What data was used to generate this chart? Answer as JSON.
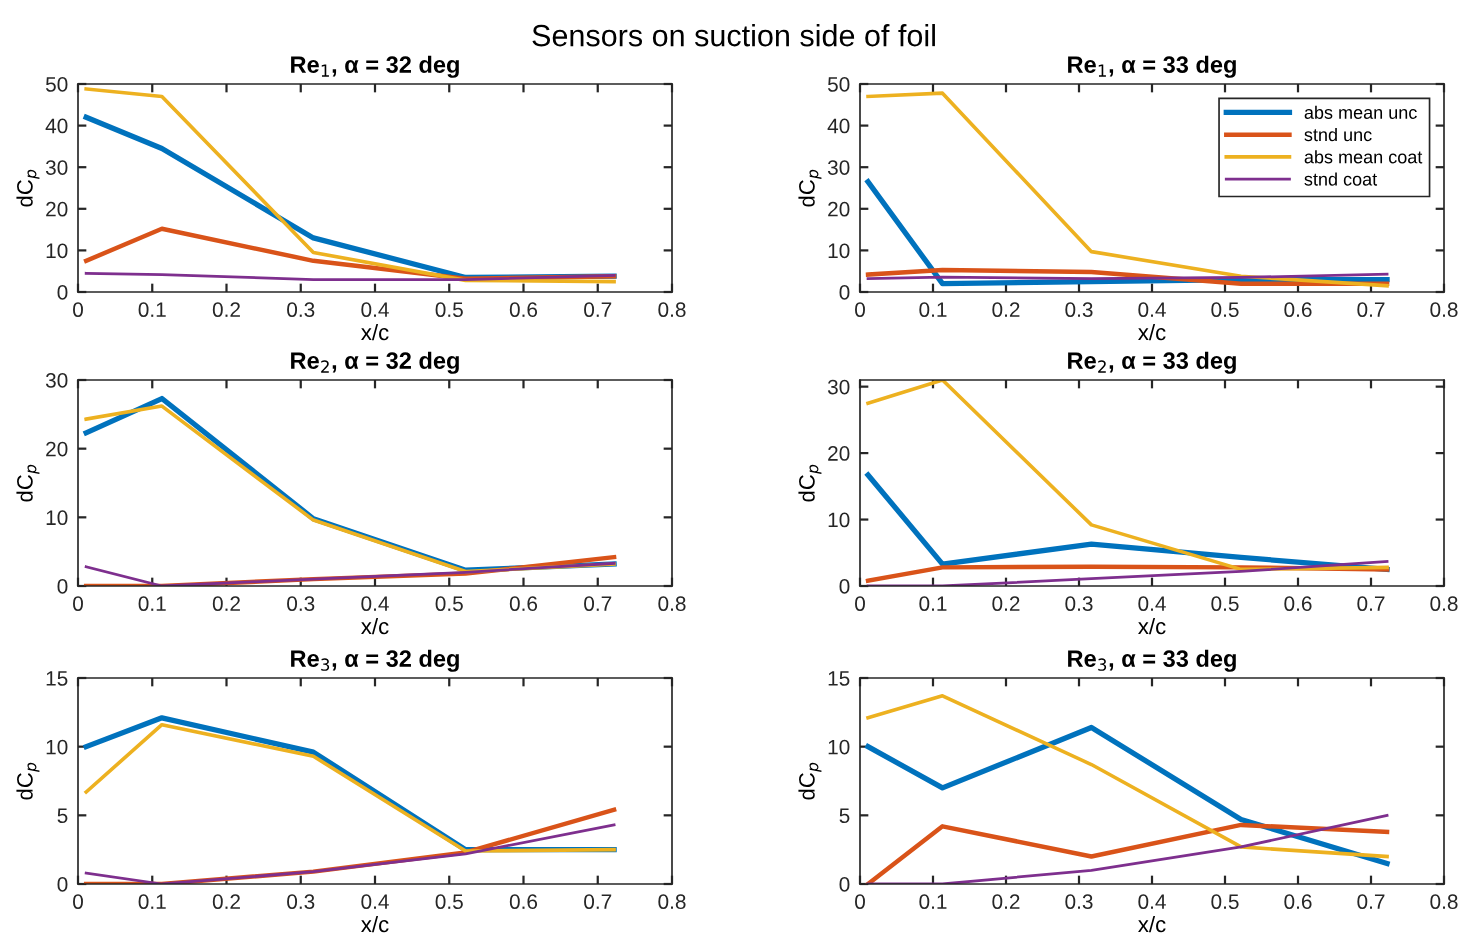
{
  "chart_data": [
    {
      "type": "line",
      "title": "Sensors on suction side of foil",
      "subtitle": "Re$_{1}$, α = 32 deg",
      "xlabel": "x/c",
      "ylabel": "dC$_{p}$",
      "x": [
        0.011,
        0.113,
        0.317,
        0.522,
        0.722
      ],
      "xlim": [
        0,
        0.8
      ],
      "xticks": [
        0,
        0.1,
        0.2,
        0.3,
        0.4,
        0.5,
        0.6,
        0.7,
        0.8
      ],
      "ylim": [
        0,
        50
      ],
      "yticks": [
        0,
        10,
        20,
        30,
        40,
        50
      ],
      "grid": false,
      "legend": false,
      "series": [
        {
          "color": "#0072bd",
          "values": [
            42,
            34.5,
            13,
            3.5,
            3.8
          ]
        },
        {
          "color": "#d95319",
          "values": [
            7.5,
            15.2,
            7.5,
            3.2,
            3.8
          ]
        },
        {
          "color": "#edb120",
          "values": [
            48.8,
            47,
            9.5,
            2.8,
            2.5
          ]
        },
        {
          "color": "#7e2f8e",
          "values": [
            4.5,
            4.2,
            3,
            3,
            4
          ]
        }
      ]
    },
    {
      "type": "line",
      "subtitle": "Re$_{1}$, α = 33 deg",
      "xlabel": "x/c",
      "ylabel": "dC$_{p}$",
      "x": [
        0.011,
        0.113,
        0.317,
        0.522,
        0.722
      ],
      "xlim": [
        0,
        0.8
      ],
      "xticks": [
        0,
        0.1,
        0.2,
        0.3,
        0.4,
        0.5,
        0.6,
        0.7,
        0.8
      ],
      "ylim": [
        0,
        50
      ],
      "yticks": [
        0,
        10,
        20,
        30,
        40,
        50
      ],
      "grid": false,
      "legend": "top right",
      "series": [
        {
          "name": "abs mean unc",
          "color": "#0072bd",
          "values": [
            26.5,
            2,
            2.5,
            3,
            3
          ]
        },
        {
          "name": "stnd unc",
          "color": "#d95319",
          "values": [
            4.2,
            5.3,
            4.8,
            2,
            2
          ]
        },
        {
          "name": "abs mean coat",
          "color": "#edb120",
          "values": [
            47,
            47.8,
            9.7,
            3.8,
            1.5
          ]
        },
        {
          "name": "stnd coat",
          "color": "#7e2f8e",
          "values": [
            3.2,
            3.6,
            3.2,
            3.5,
            4.3
          ]
        }
      ]
    },
    {
      "type": "line",
      "subtitle": "Re$_{2}$, α = 32 deg",
      "xlabel": "x/c",
      "ylabel": "dC$_{p}$",
      "x": [
        0.011,
        0.113,
        0.317,
        0.522,
        0.722
      ],
      "xlim": [
        0,
        0.8
      ],
      "xticks": [
        0,
        0.1,
        0.2,
        0.3,
        0.4,
        0.5,
        0.6,
        0.7,
        0.8
      ],
      "ylim": [
        0,
        30
      ],
      "yticks": [
        0,
        10,
        20,
        30
      ],
      "grid": false,
      "legend": false,
      "series": [
        {
          "color": "#0072bd",
          "values": [
            22.3,
            27.3,
            9.8,
            2.3,
            3.2
          ]
        },
        {
          "color": "#d95319",
          "values": [
            0,
            0,
            1,
            1.8,
            4.2
          ]
        },
        {
          "color": "#edb120",
          "values": [
            24.3,
            26.2,
            9.6,
            2.1,
            3.2
          ]
        },
        {
          "color": "#7e2f8e",
          "values": [
            2.8,
            0,
            1,
            2,
            3.3
          ]
        }
      ]
    },
    {
      "type": "line",
      "subtitle": "Re$_{2}$, α = 33 deg",
      "xlabel": "x/c",
      "ylabel": "dC$_{p}$",
      "x": [
        0.011,
        0.113,
        0.317,
        0.522,
        0.722
      ],
      "xlim": [
        0,
        0.8
      ],
      "xticks": [
        0,
        0.1,
        0.2,
        0.3,
        0.4,
        0.5,
        0.6,
        0.7,
        0.8
      ],
      "ylim": [
        0,
        31
      ],
      "yticks": [
        0,
        10,
        20,
        30
      ],
      "grid": false,
      "legend": false,
      "series": [
        {
          "color": "#0072bd",
          "values": [
            16.7,
            3.3,
            6.3,
            4.3,
            2.5
          ]
        },
        {
          "color": "#d95319",
          "values": [
            0.8,
            2.8,
            2.9,
            2.8,
            2.5
          ]
        },
        {
          "color": "#edb120",
          "values": [
            27.5,
            31,
            9.2,
            2.5,
            2.8
          ]
        },
        {
          "color": "#7e2f8e",
          "values": [
            0,
            0,
            1.1,
            2.2,
            3.7
          ]
        }
      ]
    },
    {
      "type": "line",
      "subtitle": "Re$_{3}$, α = 32 deg",
      "xlabel": "x/c",
      "ylabel": "dC$_{p}$",
      "x": [
        0.011,
        0.113,
        0.317,
        0.522,
        0.722
      ],
      "xlim": [
        0,
        0.8
      ],
      "xticks": [
        0,
        0.1,
        0.2,
        0.3,
        0.4,
        0.5,
        0.6,
        0.7,
        0.8
      ],
      "ylim": [
        0,
        15
      ],
      "yticks": [
        0,
        5,
        10,
        15
      ],
      "grid": false,
      "legend": false,
      "series": [
        {
          "color": "#0072bd",
          "values": [
            10,
            12.1,
            9.6,
            2.5,
            2.5
          ]
        },
        {
          "color": "#d95319",
          "values": [
            0,
            0,
            0.9,
            2.3,
            5.4
          ]
        },
        {
          "color": "#edb120",
          "values": [
            6.7,
            11.6,
            9.3,
            2.4,
            2.5
          ]
        },
        {
          "color": "#7e2f8e",
          "values": [
            0.8,
            0,
            0.9,
            2.2,
            4.3
          ]
        }
      ]
    },
    {
      "type": "line",
      "subtitle": "Re$_{3}$, α = 33 deg",
      "xlabel": "x/c",
      "ylabel": "dC$_{p}$",
      "x": [
        0.011,
        0.113,
        0.317,
        0.522,
        0.722
      ],
      "xlim": [
        0,
        0.8
      ],
      "xticks": [
        0,
        0.1,
        0.2,
        0.3,
        0.4,
        0.5,
        0.6,
        0.7,
        0.8
      ],
      "ylim": [
        0,
        15
      ],
      "yticks": [
        0,
        5,
        10,
        15
      ],
      "grid": false,
      "legend": false,
      "series": [
        {
          "color": "#0072bd",
          "values": [
            10,
            7,
            11.4,
            4.7,
            1.5
          ]
        },
        {
          "color": "#d95319",
          "values": [
            0,
            4.2,
            2,
            4.3,
            3.8
          ]
        },
        {
          "color": "#edb120",
          "values": [
            12.1,
            13.7,
            8.7,
            2.7,
            2
          ]
        },
        {
          "color": "#7e2f8e",
          "values": [
            0,
            0,
            1,
            2.7,
            5
          ]
        }
      ]
    }
  ]
}
